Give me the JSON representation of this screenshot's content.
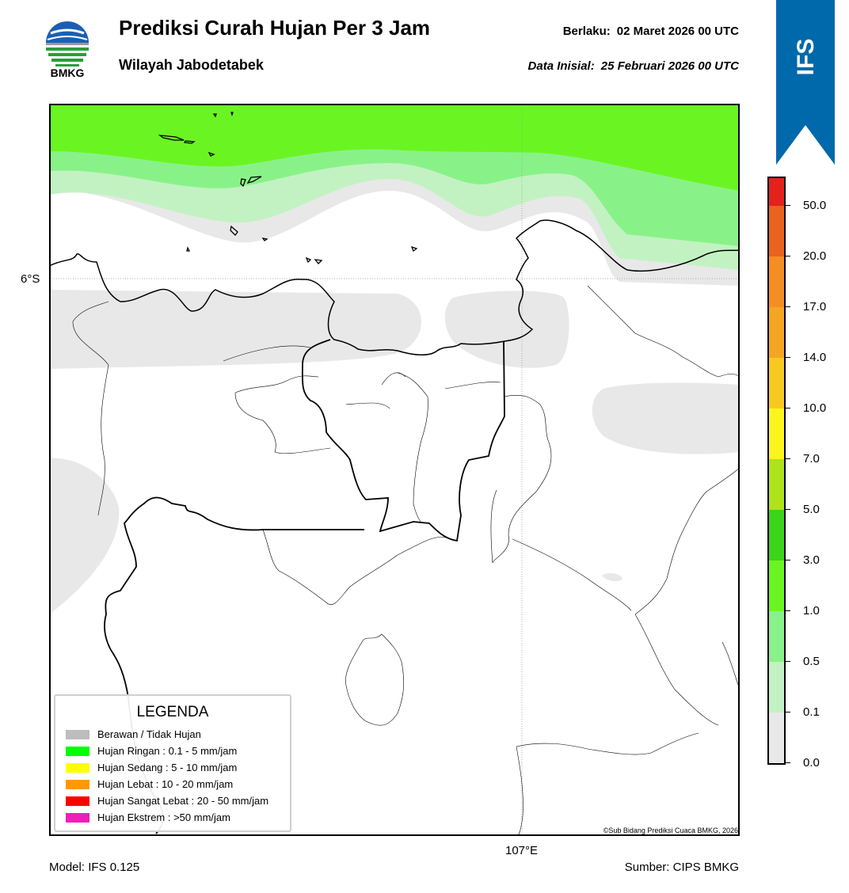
{
  "header": {
    "title": "Prediksi Curah Hujan Per 3 Jam",
    "subtitle": "Wilayah Jabodetabek",
    "valid_label": "Berlaku:",
    "valid_value": "02 Maret 2026 00 UTC",
    "init_label": "Data Inisial:",
    "init_value": "25 Februari 2026 00 UTC"
  },
  "logo": {
    "text": "BMKG",
    "icon": "bmkg-logo-icon"
  },
  "model_badge": {
    "text": "IFS",
    "color": "#0069ab"
  },
  "map": {
    "lat_label": "6°S",
    "lon_label": "107°E",
    "copyright": "©Sub Bidang Prediksi Cuaca BMKG, 2026"
  },
  "legend": {
    "title": "LEGENDA",
    "items": [
      {
        "label": "Berawan / Tidak Hujan",
        "color": "#bdbdbd"
      },
      {
        "label": "Hujan Ringan : 0.1 - 5 mm/jam",
        "color": "#00ff00"
      },
      {
        "label": "Hujan Sedang : 5 - 10 mm/jam",
        "color": "#ffff00"
      },
      {
        "label": "Hujan Lebat : 10 - 20 mm/jam",
        "color": "#ff9900"
      },
      {
        "label": "Hujan Sangat Lebat : 20 - 50 mm/jam",
        "color": "#ff0000"
      },
      {
        "label": "Hujan Ekstrem : >50 mm/jam",
        "color": "#ee1fbb"
      }
    ]
  },
  "colorbar": {
    "ticks": [
      "0.0",
      "0.1",
      "0.5",
      "1.0",
      "3.0",
      "5.0",
      "7.0",
      "10.0",
      "14.0",
      "17.0",
      "20.0",
      "50.0"
    ],
    "colors": [
      "#e8e8e8",
      "#c2f2c2",
      "#88f288",
      "#6af522",
      "#3ad41a",
      "#aee21a",
      "#fef41d",
      "#f7c920",
      "#f4a623",
      "#f48e22",
      "#e9621e",
      "#e2221b",
      "#e020c0"
    ]
  },
  "footer": {
    "model": "Model: IFS 0.125",
    "source": "Sumber: CIPS BMKG"
  }
}
